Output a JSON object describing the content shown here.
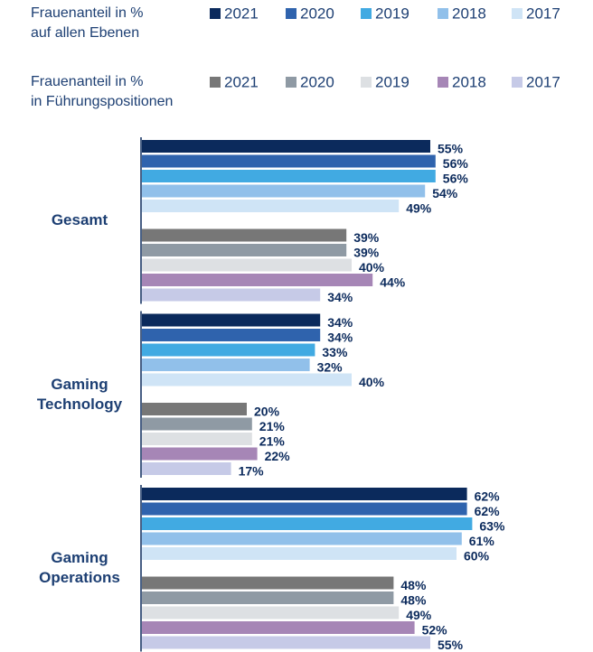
{
  "chart_data": {
    "type": "bar",
    "categories": [
      "Gesamt",
      "Gaming Technology",
      "Gaming Operations"
    ],
    "series_groups": [
      {
        "title": "Frauenanteil in %\nauf allen Ebenen",
        "series": [
          {
            "name": "2021",
            "color": "#0b2a5c",
            "values": [
              55,
              34,
              62
            ],
            "value_labels": [
              "55%",
              "34%",
              "62%"
            ]
          },
          {
            "name": "2020",
            "color": "#2f63ad",
            "values": [
              56,
              34,
              62
            ],
            "value_labels": [
              "56%",
              "34%",
              "62%"
            ]
          },
          {
            "name": "2019",
            "color": "#41aae2",
            "values": [
              56,
              33,
              63
            ],
            "value_labels": [
              "56%",
              "33%",
              "63%"
            ]
          },
          {
            "name": "2018",
            "color": "#91c0ea",
            "values": [
              54,
              32,
              61
            ],
            "value_labels": [
              "54%",
              "32%",
              "61%"
            ]
          },
          {
            "name": "2017",
            "color": "#cfe4f6",
            "values": [
              49,
              40,
              60
            ],
            "value_labels": [
              "49%",
              "40%",
              "60%"
            ]
          }
        ]
      },
      {
        "title": "Frauenanteil in %\nin Führungspositionen",
        "series": [
          {
            "name": "2021",
            "color": "#777777",
            "values": [
              39,
              20,
              48
            ],
            "value_labels": [
              "39%",
              "20%",
              "48%"
            ]
          },
          {
            "name": "2020",
            "color": "#8f9aa4",
            "values": [
              39,
              21,
              48
            ],
            "value_labels": [
              "39%",
              "21%",
              "48%"
            ]
          },
          {
            "name": "2019",
            "color": "#dde0e3",
            "values": [
              40,
              21,
              49
            ],
            "value_labels": [
              "40%",
              "21%",
              "49%"
            ]
          },
          {
            "name": "2018",
            "color": "#a686b6",
            "values": [
              44,
              22,
              52
            ],
            "value_labels": [
              "44%",
              "22%",
              "52%"
            ]
          },
          {
            "name": "2017",
            "color": "#c6cae7",
            "values": [
              34,
              17,
              55
            ],
            "value_labels": [
              "34%",
              "17%",
              "55%"
            ]
          }
        ]
      }
    ]
  }
}
